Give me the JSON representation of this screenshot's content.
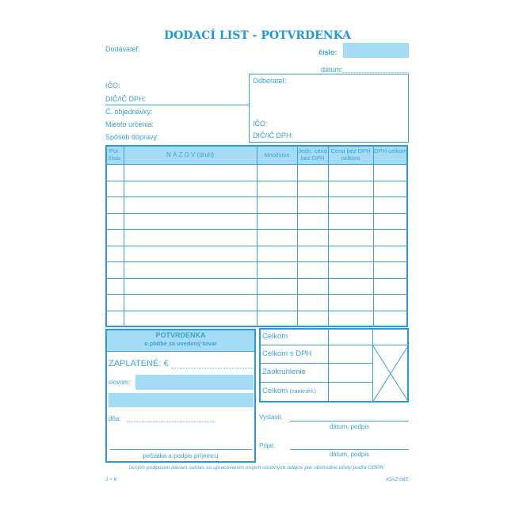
{
  "title": "DODACÍ LIST - POTVRDENKA",
  "header": {
    "supplier": "Dodávateľ:",
    "number_label": "číslo:",
    "date_label": "dátum:",
    "ico": "IČO:",
    "dic": "DIČ/IČ DPH:",
    "order": "Č. objednávky:",
    "destination": "Miesto určenia:",
    "transport": "Spôsob dopravy:"
  },
  "customer": {
    "label": "Odberateľ:",
    "ico": "IČO:",
    "dic": "DIČ/IČ DPH:"
  },
  "table": {
    "columns": [
      "Por. číslo",
      "N Á Z O V  (druh)",
      "Množstvo",
      "Jedn. cena bez DPH",
      "Cena bez DPH celkom",
      "DPH celkom"
    ],
    "row_count": 10
  },
  "receipt": {
    "title": "POTVRDENKA",
    "subtitle": "o platbe za uvedený tovar",
    "paid": "ZAPLATENÉ: €",
    "words": "slovom:",
    "day": "dňa:",
    "stamp": "pečiatka a podpis príjemcu"
  },
  "totals": {
    "rows": [
      "Celkom",
      "Celkom s DPH",
      "Zaokrúhlenie",
      "Celkom"
    ],
    "rounded_note": "(zaokrúhl.)"
  },
  "signatures": {
    "issued": "Vystavil:",
    "received": "Prijal:",
    "date_sign": "dátum, podpis"
  },
  "footer": {
    "gdpr": "Svojím podpisom dávam súhlas so spracovaním mojich osobných údajov pre obchodné účely podľa GDPR.",
    "publisher": "J + K",
    "code": "IGAZ 065"
  },
  "colors": {
    "line": "#3ba3d3",
    "fill": "#a6dbf5"
  }
}
